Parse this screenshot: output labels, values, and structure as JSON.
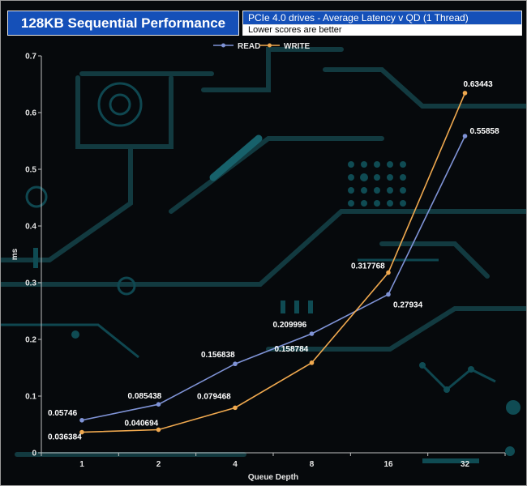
{
  "header": {
    "title": "128KB Sequential Performance",
    "subtitle": "PCIe 4.0 drives - Average Latency v QD (1 Thread)",
    "note": "Lower scores are better"
  },
  "colors": {
    "read": "#7f93d6",
    "write": "#f0a94f",
    "title_bg": "#1550b8"
  },
  "chart_data": {
    "type": "line",
    "categories": [
      "1",
      "2",
      "4",
      "8",
      "16",
      "32"
    ],
    "xlabel": "Queue Depth",
    "ylabel": "ms",
    "ylim": [
      0,
      0.7
    ],
    "yticks": [
      "0",
      "0.1",
      "0.2",
      "0.3",
      "0.4",
      "0.5",
      "0.6",
      "0.7"
    ],
    "grid": false,
    "legend": "top-center",
    "series": [
      {
        "name": "READ",
        "values": [
          0.05746,
          0.085438,
          0.156838,
          0.209996,
          0.27934,
          0.55858
        ],
        "labels": [
          "0.05746",
          "0.085438",
          "0.156838",
          "0.209996",
          "0.27934",
          "0.55858"
        ]
      },
      {
        "name": "WRITE",
        "values": [
          0.036384,
          0.040694,
          0.079468,
          0.158784,
          0.317768,
          0.63443
        ],
        "labels": [
          "0.036384",
          "0.040694",
          "0.079468",
          "0.158784",
          "0.317768",
          "0.63443"
        ]
      }
    ]
  }
}
